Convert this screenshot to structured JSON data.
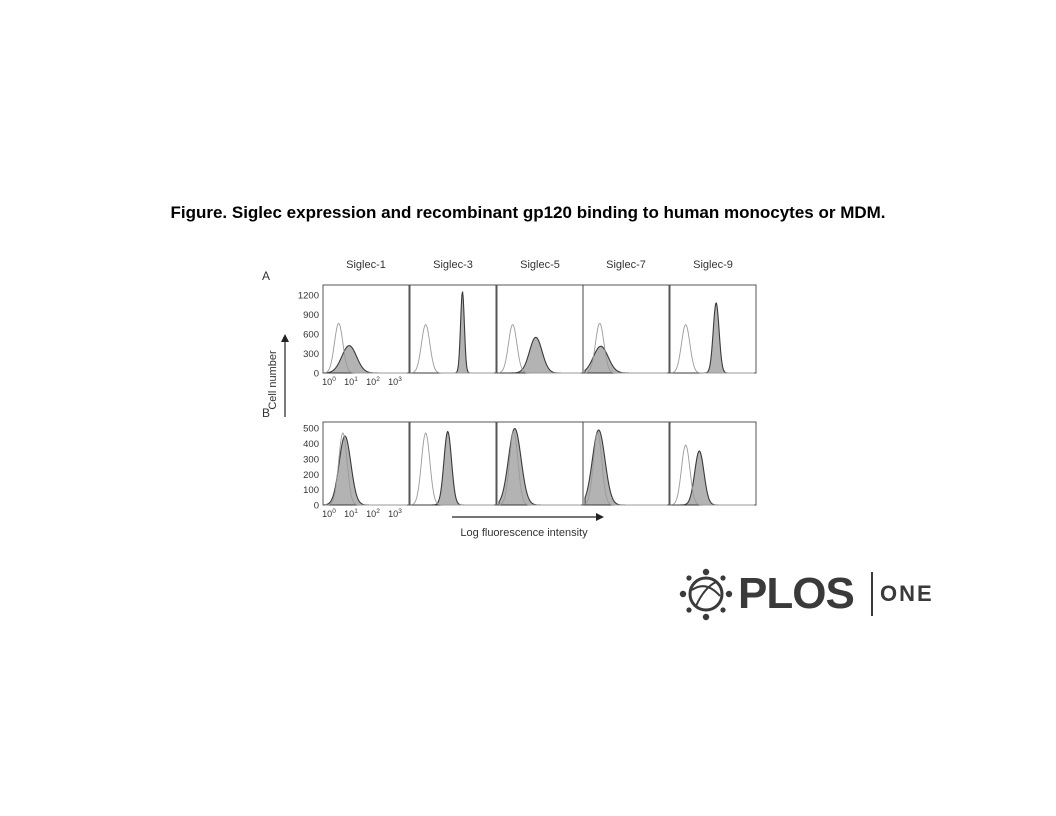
{
  "title": "Figure. Siglec expression and recombinant gp120 binding to human monocytes or MDM.",
  "publisher": {
    "word": "PLOS",
    "product": "ONE"
  },
  "colors": {
    "ink": "#3a3a3a",
    "fill": "#b3b3b3",
    "isotype": "#9a9a9a"
  },
  "chart_data": {
    "type": "histogram-grid",
    "columns": [
      "Siglec-1",
      "Siglec-3",
      "Siglec-5",
      "Siglec-7",
      "Siglec-9"
    ],
    "y_axis_label": "Cell number",
    "x_axis_label": "Log fluorescence intensity",
    "x_scale": "log",
    "x_ticks": [
      "10",
      "10",
      "10",
      "10"
    ],
    "x_tick_exponents": [
      "0",
      "1",
      "2",
      "3"
    ],
    "panels": [
      {
        "label": "A",
        "y_ticks": [
          "0",
          "300",
          "600",
          "900",
          "1200"
        ],
        "ylim": [
          0,
          1350
        ],
        "histograms": [
          {
            "isotype_peak_log": 0.55,
            "isotype_height": 780,
            "stained_peak_log": 1.05,
            "stained_height": 430,
            "stained_width": 0.35
          },
          {
            "isotype_peak_log": 0.55,
            "isotype_height": 760,
            "stained_peak_log": 2.3,
            "stained_height": 1280,
            "stained_width": 0.09
          },
          {
            "isotype_peak_log": 0.55,
            "isotype_height": 760,
            "stained_peak_log": 1.65,
            "stained_height": 560,
            "stained_width": 0.3
          },
          {
            "isotype_peak_log": 0.6,
            "isotype_height": 780,
            "stained_peak_log": 0.65,
            "stained_height": 420,
            "stained_width": 0.35
          },
          {
            "isotype_peak_log": 0.55,
            "isotype_height": 760,
            "stained_peak_log": 2.0,
            "stained_height": 1100,
            "stained_width": 0.14
          }
        ]
      },
      {
        "label": "B",
        "y_ticks": [
          "0",
          "100",
          "200",
          "300",
          "400",
          "500"
        ],
        "ylim": [
          0,
          540
        ],
        "histograms": [
          {
            "isotype_peak_log": 0.75,
            "isotype_height": 480,
            "stained_peak_log": 0.85,
            "stained_height": 460,
            "stained_width": 0.28
          },
          {
            "isotype_peak_log": 0.55,
            "isotype_height": 480,
            "stained_peak_log": 1.6,
            "stained_height": 490,
            "stained_width": 0.18
          },
          {
            "isotype_peak_log": 0.6,
            "isotype_height": 490,
            "stained_peak_log": 0.65,
            "stained_height": 510,
            "stained_width": 0.3
          },
          {
            "isotype_peak_log": 0.5,
            "isotype_height": 480,
            "stained_peak_log": 0.55,
            "stained_height": 500,
            "stained_width": 0.3
          },
          {
            "isotype_peak_log": 0.55,
            "isotype_height": 400,
            "stained_peak_log": 1.2,
            "stained_height": 360,
            "stained_width": 0.22
          }
        ]
      }
    ]
  }
}
